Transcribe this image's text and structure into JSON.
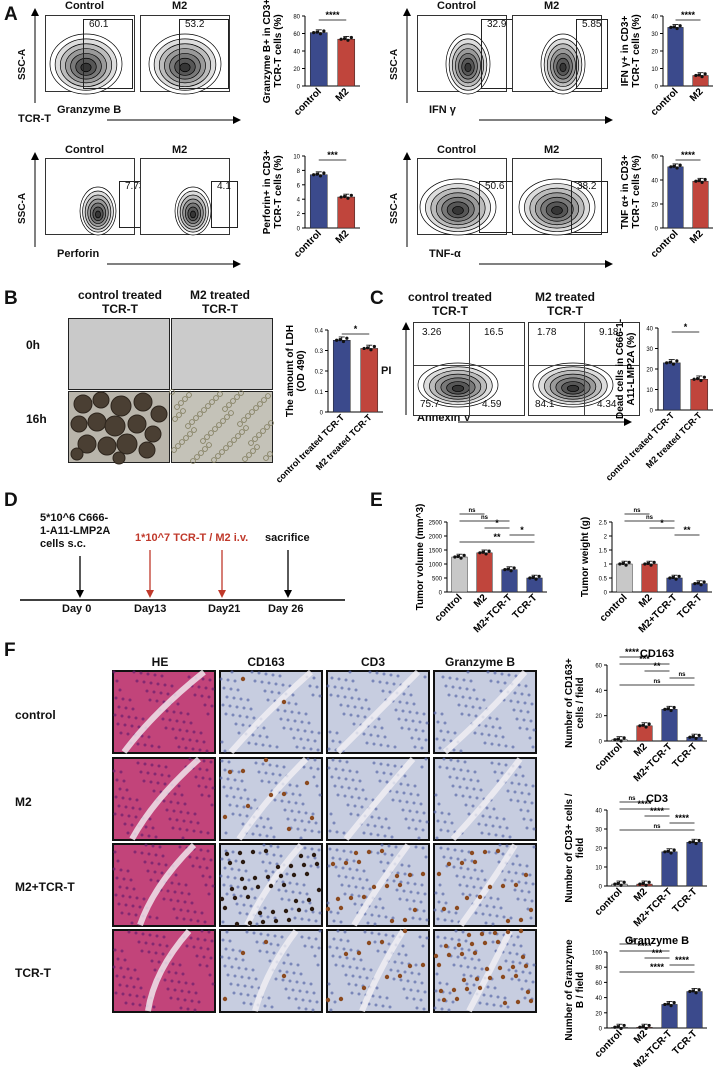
{
  "panels": {
    "A": "A",
    "B": "B",
    "C": "C",
    "D": "D",
    "E": "E",
    "F": "F"
  },
  "flow": {
    "control": "Control",
    "m2": "M2",
    "gzmb": {
      "yl": "SSC-A",
      "xl": "Granzyme B",
      "v1": "60.1",
      "v2": "53.2"
    },
    "ifn": {
      "yl": "SSC-A",
      "xl": "IFN γ",
      "v1": "32.9",
      "v2": "5.85"
    },
    "perf": {
      "yl": "SSC-A",
      "xl": "Perforin",
      "v1": "7.73",
      "v2": "4.1"
    },
    "tnf": {
      "yl": "SSC-A",
      "xl": "TNF-α",
      "v1": "50.6",
      "v2": "38.2"
    },
    "tcrt": "TCR-T"
  },
  "panelB": {
    "h1": "control treated\nTCR-T",
    "h2": "M2 treated\nTCR-T",
    "t0": "0h",
    "t16": "16h"
  },
  "panelC": {
    "h1": "control treated\nTCR-T",
    "h2": "M2 treated\nTCR-T",
    "q1": [
      "3.26",
      "16.5",
      "75.7",
      "4.59"
    ],
    "q2": [
      "1.78",
      "9.18",
      "84.1",
      "4.34"
    ],
    "yl": "PI",
    "xl": "Annexin V"
  },
  "panelD": {
    "cells": "5*10^6 C666-\n1-A11-LMP2A\ncells s.c.",
    "inj": "1*10^7 TCR-T / M2 i.v.",
    "sac": "sacrifice",
    "days": [
      "Day 0",
      "Day13",
      "Day21",
      "Day 26"
    ],
    "accent": "#c0392b"
  },
  "panelF": {
    "cols": [
      "HE",
      "CD163",
      "CD3",
      "Granzyme B"
    ],
    "rows": [
      "control",
      "M2",
      "M2+TCR-T",
      "TCR-T"
    ]
  },
  "colors": {
    "control": "#3b4a8c",
    "m2": "#c0453c",
    "grey": "#c8c8c8"
  },
  "chart_data": [
    {
      "id": "A1",
      "type": "bar",
      "categories": [
        "control",
        "M2"
      ],
      "values": [
        61,
        53.5
      ],
      "ylabel": "Granzyme B+ in CD3+\nTCR-T cells (%)",
      "ylim": [
        0,
        80
      ],
      "yticks": [
        0,
        20,
        40,
        60,
        80
      ],
      "sig": [
        "****"
      ]
    },
    {
      "id": "A2",
      "type": "bar",
      "categories": [
        "control",
        "M2"
      ],
      "values": [
        33.5,
        6
      ],
      "ylabel": "IFN γ+ in CD3+\nTCR-T cells (%)",
      "ylim": [
        0,
        40
      ],
      "yticks": [
        0,
        10,
        20,
        30,
        40
      ],
      "sig": [
        "****"
      ]
    },
    {
      "id": "A3",
      "type": "bar",
      "categories": [
        "control",
        "M2"
      ],
      "values": [
        7.4,
        4.3
      ],
      "ylabel": "Perforin+ in CD3+\nTCR-T cells (%)",
      "ylim": [
        0,
        10
      ],
      "yticks": [
        0,
        2,
        4,
        6,
        8,
        10
      ],
      "sig": [
        "***"
      ]
    },
    {
      "id": "A4",
      "type": "bar",
      "categories": [
        "control",
        "M2"
      ],
      "values": [
        51,
        39
      ],
      "ylabel": "TNF α+ in CD3+\nTCR-T cells (%)",
      "ylim": [
        0,
        60
      ],
      "yticks": [
        0,
        20,
        40,
        60
      ],
      "sig": [
        "****"
      ]
    },
    {
      "id": "B",
      "type": "bar",
      "categories": [
        "control treated TCR-T",
        "M2 treated TCR-T"
      ],
      "values": [
        0.35,
        0.31
      ],
      "ylabel": "The amount of LDH\n(OD 490)",
      "ylim": [
        0,
        0.4
      ],
      "yticks": [
        0,
        0.1,
        0.2,
        0.3,
        0.4
      ],
      "sig": [
        "*"
      ]
    },
    {
      "id": "C",
      "type": "bar",
      "categories": [
        "control treated TCR-T",
        "M2 treated TCR-T"
      ],
      "values": [
        23,
        15
      ],
      "ylabel": "Dead cells in C666-1-\nA11-LMP2A (%)",
      "ylim": [
        0,
        40
      ],
      "yticks": [
        0,
        10,
        20,
        30,
        40
      ],
      "sig": [
        "*"
      ]
    },
    {
      "id": "E1",
      "type": "bar",
      "categories": [
        "control",
        "M2",
        "M2+TCR-T",
        "TCR-T"
      ],
      "values": [
        1250,
        1400,
        800,
        500
      ],
      "ylabel": "Tumor volume (mm^3)",
      "ylim": [
        0,
        2500
      ],
      "yticks": [
        0,
        500,
        1000,
        1500,
        2000,
        2500
      ],
      "sig": [
        "ns",
        "ns",
        "*",
        "*",
        "**"
      ]
    },
    {
      "id": "E2",
      "type": "bar",
      "categories": [
        "control",
        "M2",
        "M2+TCR-T",
        "TCR-T"
      ],
      "values": [
        1.0,
        1.0,
        0.5,
        0.3
      ],
      "ylabel": "Tumor weight (g)",
      "ylim": [
        0,
        2.5
      ],
      "yticks": [
        0,
        0.5,
        1.0,
        1.5,
        2.0,
        2.5
      ],
      "sig": [
        "ns",
        "ns",
        "*",
        "**"
      ]
    },
    {
      "id": "F1",
      "type": "bar",
      "title": "CD163",
      "categories": [
        "control",
        "M2",
        "M2+TCR-T",
        "TCR-T"
      ],
      "values": [
        1,
        12,
        25,
        3
      ],
      "ylabel": "Number of CD163+\ncells / field",
      "ylim": [
        0,
        60
      ],
      "yticks": [
        0,
        20,
        40,
        60
      ],
      "sig": [
        "****",
        "***",
        "**",
        "ns",
        "ns"
      ]
    },
    {
      "id": "F2",
      "type": "bar",
      "title": "CD3",
      "categories": [
        "control",
        "M2",
        "M2+TCR-T",
        "TCR-T"
      ],
      "values": [
        1,
        1,
        18,
        23
      ],
      "ylabel": "Number of CD3+ cells /\nfield",
      "ylim": [
        0,
        40
      ],
      "yticks": [
        0,
        10,
        20,
        30,
        40
      ],
      "sig": [
        "ns",
        "****",
        "****",
        "****",
        "ns"
      ]
    },
    {
      "id": "F3",
      "type": "bar",
      "title": "Granzyme B",
      "categories": [
        "control",
        "M2",
        "M2+TCR-T",
        "TCR-T"
      ],
      "values": [
        1,
        1,
        31,
        48
      ],
      "ylabel": "Number of Granzyme\nB / field",
      "ylim": [
        0,
        100
      ],
      "yticks": [
        0,
        20,
        40,
        60,
        80,
        100
      ],
      "sig": [
        "ns",
        "****",
        "***",
        "****",
        "****"
      ]
    }
  ]
}
